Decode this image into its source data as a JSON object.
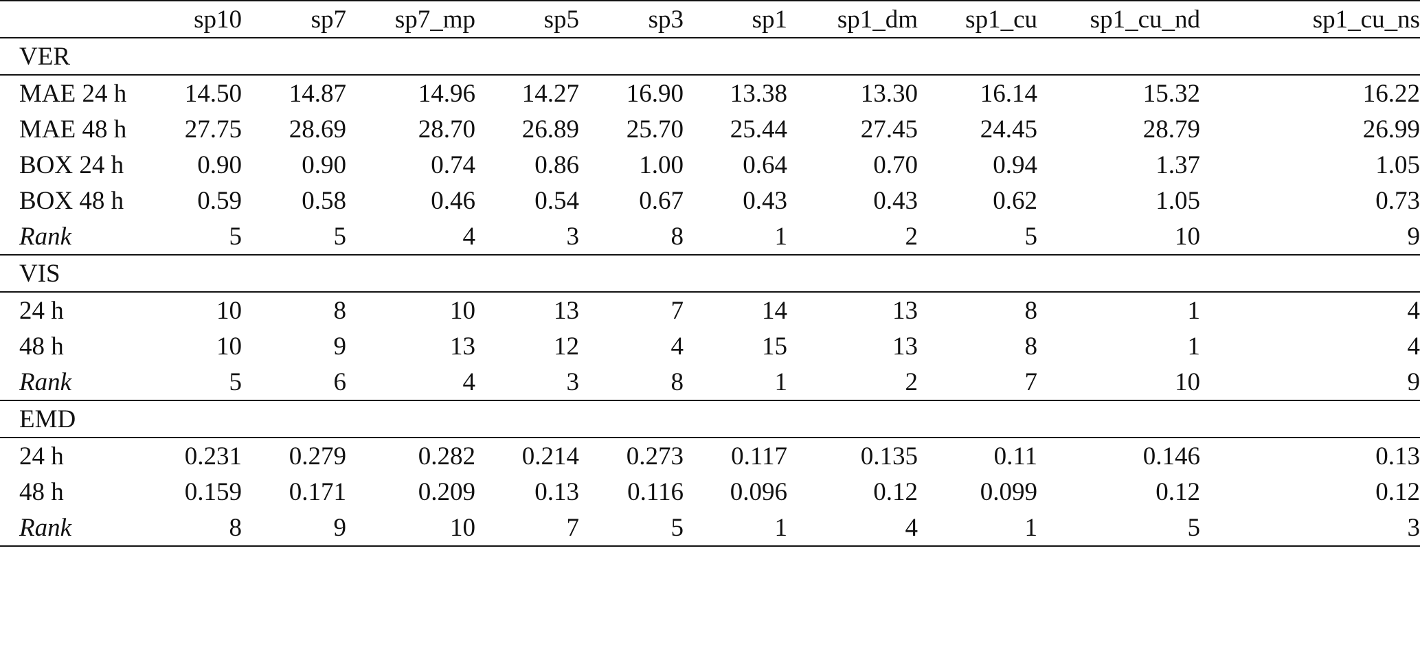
{
  "columns": [
    "",
    "sp10",
    "sp7",
    "sp7_mp",
    "sp5",
    "sp3",
    "sp1",
    "sp1_dm",
    "sp1_cu",
    "sp1_cu_nd",
    "sp1_cu_ns"
  ],
  "sections": [
    {
      "title": "VER",
      "rows": [
        {
          "label": "MAE 24 h",
          "italic": false,
          "values": [
            "14.50",
            "14.87",
            "14.96",
            "14.27",
            "16.90",
            "13.38",
            "13.30",
            "16.14",
            "15.32",
            "16.22"
          ]
        },
        {
          "label": "MAE 48 h",
          "italic": false,
          "values": [
            "27.75",
            "28.69",
            "28.70",
            "26.89",
            "25.70",
            "25.44",
            "27.45",
            "24.45",
            "28.79",
            "26.99"
          ]
        },
        {
          "label": "BOX 24 h",
          "italic": false,
          "values": [
            "0.90",
            "0.90",
            "0.74",
            "0.86",
            "1.00",
            "0.64",
            "0.70",
            "0.94",
            "1.37",
            "1.05"
          ]
        },
        {
          "label": "BOX 48 h",
          "italic": false,
          "values": [
            "0.59",
            "0.58",
            "0.46",
            "0.54",
            "0.67",
            "0.43",
            "0.43",
            "0.62",
            "1.05",
            "0.73"
          ]
        },
        {
          "label": "Rank",
          "italic": true,
          "values": [
            "5",
            "5",
            "4",
            "3",
            "8",
            "1",
            "2",
            "5",
            "10",
            "9"
          ]
        }
      ]
    },
    {
      "title": "VIS",
      "rows": [
        {
          "label": "24 h",
          "italic": false,
          "values": [
            "10",
            "8",
            "10",
            "13",
            "7",
            "14",
            "13",
            "8",
            "1",
            "4"
          ]
        },
        {
          "label": "48 h",
          "italic": false,
          "values": [
            "10",
            "9",
            "13",
            "12",
            "4",
            "15",
            "13",
            "8",
            "1",
            "4"
          ]
        },
        {
          "label": "Rank",
          "italic": true,
          "values": [
            "5",
            "6",
            "4",
            "3",
            "8",
            "1",
            "2",
            "7",
            "10",
            "9"
          ]
        }
      ]
    },
    {
      "title": "EMD",
      "rows": [
        {
          "label": "24 h",
          "italic": false,
          "values": [
            "0.231",
            "0.279",
            "0.282",
            "0.214",
            "0.273",
            "0.117",
            "0.135",
            "0.11",
            "0.146",
            "0.13"
          ]
        },
        {
          "label": "48 h",
          "italic": false,
          "values": [
            "0.159",
            "0.171",
            "0.209",
            "0.13",
            "0.116",
            "0.096",
            "0.12",
            "0.099",
            "0.12",
            "0.12"
          ]
        },
        {
          "label": "Rank",
          "italic": true,
          "values": [
            "8",
            "9",
            "10",
            "7",
            "5",
            "1",
            "4",
            "1",
            "5",
            "3"
          ]
        }
      ]
    }
  ]
}
